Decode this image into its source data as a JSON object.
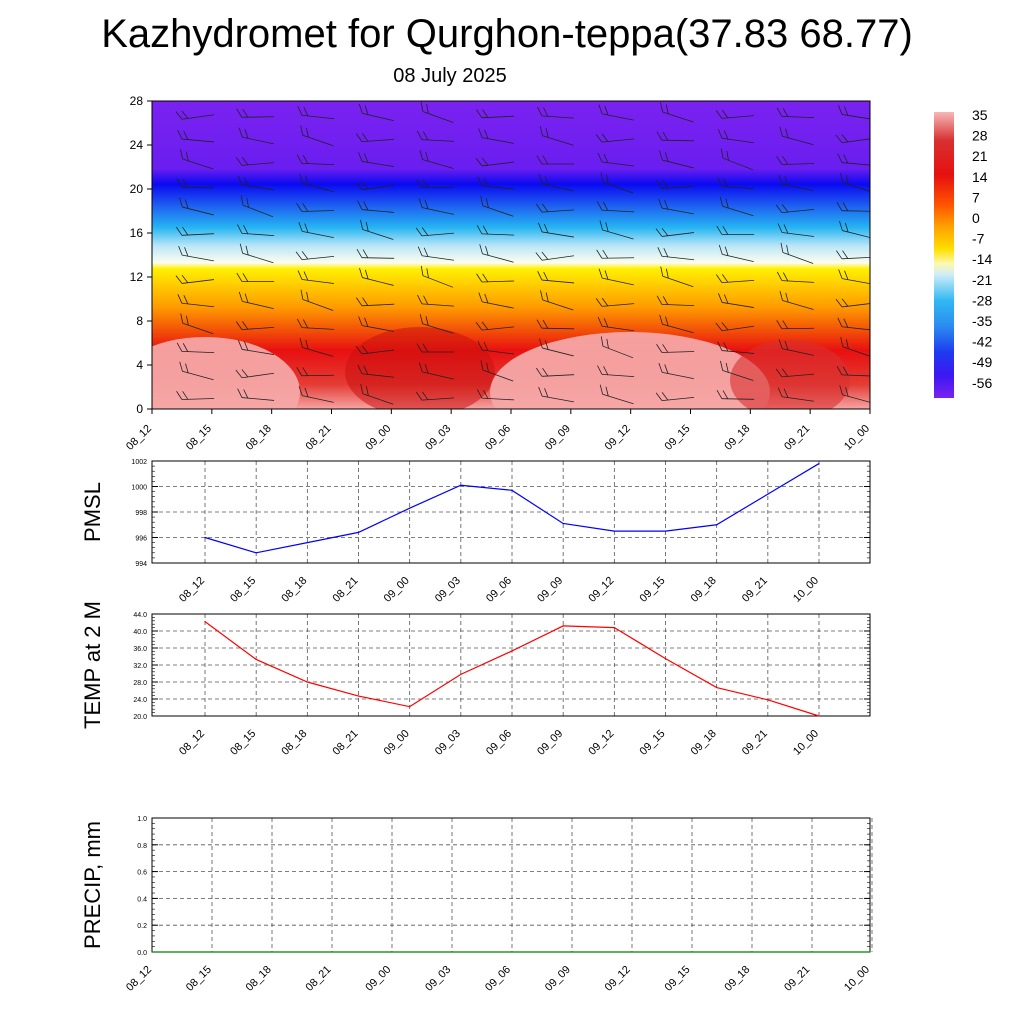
{
  "title": "Kazhydromet for Qurghon-teppa(37.83 68.77)",
  "date": "08 July 2025",
  "colors": {
    "pmsl_line": "#0000ff",
    "temp_line": "#ff0000",
    "precip_line": "#008000",
    "grid": "#555555"
  },
  "chart_data": [
    {
      "type": "heatmap",
      "name": "cross-section",
      "x": [
        "08_12",
        "08_15",
        "08_18",
        "08_21",
        "09_00",
        "09_03",
        "09_06",
        "09_09",
        "09_12",
        "09_15",
        "09_18",
        "09_21",
        "10_00"
      ],
      "y_ticks": [
        "0",
        "4",
        "8",
        "12",
        "16",
        "20",
        "24",
        "28"
      ],
      "ylim": [
        0,
        28
      ],
      "colorbar": {
        "labels": [
          "35",
          "28",
          "21",
          "14",
          "7",
          "0",
          "-7",
          "-14",
          "-21",
          "-28",
          "-35",
          "-42",
          "-49",
          "-56"
        ],
        "range": [
          -63,
          42
        ]
      },
      "wind_barbs": true
    },
    {
      "type": "line",
      "ylabel": "PMSL",
      "x": [
        "08_12",
        "08_15",
        "08_18",
        "08_21",
        "09_00",
        "09_03",
        "09_06",
        "09_09",
        "09_12",
        "09_15",
        "09_18",
        "09_21",
        "10_00"
      ],
      "values": [
        996.0,
        994.8,
        995.6,
        996.4,
        998.3,
        1000.1,
        999.7,
        997.1,
        996.5,
        996.5,
        997.0,
        999.4,
        1001.8
      ],
      "y_ticks": [
        "994",
        "996",
        "998",
        "1000",
        "1002"
      ],
      "ylim": [
        994,
        1002
      ],
      "grid": true
    },
    {
      "type": "line",
      "ylabel": "TEMP at 2 M",
      "x": [
        "08_12",
        "08_15",
        "08_18",
        "08_21",
        "09_00",
        "09_03",
        "09_06",
        "09_09",
        "09_12",
        "09_15",
        "09_18",
        "09_21",
        "10_00"
      ],
      "values": [
        42.2,
        33.3,
        28.0,
        24.7,
        22.2,
        29.8,
        35.3,
        41.2,
        40.8,
        33.5,
        26.7,
        23.8,
        20.0
      ],
      "y_ticks": [
        "20.0",
        "24.0",
        "28.0",
        "32.0",
        "36.0",
        "40.0",
        "44.0"
      ],
      "ylim": [
        20,
        44
      ],
      "grid": true
    },
    {
      "type": "line",
      "ylabel": "PRECIP, mm",
      "x": [
        "08_12",
        "08_15",
        "08_18",
        "08_21",
        "09_00",
        "09_03",
        "09_06",
        "09_09",
        "09_12",
        "09_15",
        "09_18",
        "09_21",
        "10_00"
      ],
      "values": [
        0,
        0,
        0,
        0,
        0,
        0,
        0,
        0,
        0,
        0,
        0,
        0,
        0
      ],
      "y_ticks": [
        "0.0",
        "0.2",
        "0.4",
        "0.6",
        "0.8",
        "1.0"
      ],
      "ylim": [
        0,
        1
      ],
      "grid": true
    }
  ]
}
